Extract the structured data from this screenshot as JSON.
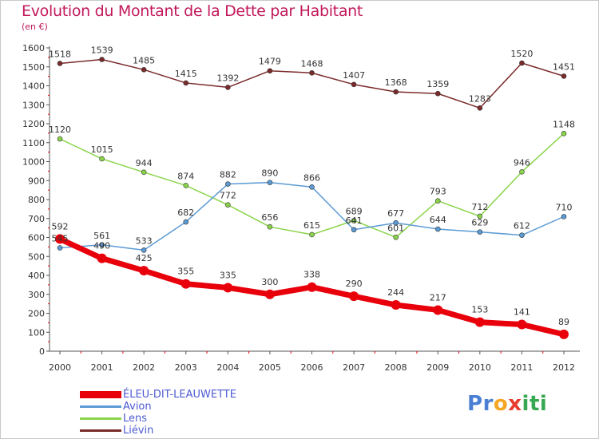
{
  "title": "Evolution du Montant de la Dette par Habitant",
  "subtitle": "(en €)",
  "logo": {
    "letters": [
      "P",
      "r",
      "o",
      "x",
      "i",
      "t",
      "i"
    ],
    "colors": [
      "#4a7fd4",
      "#4a7fd4",
      "#f5a623",
      "#e63c2f",
      "#39a852",
      "#39a852",
      "#39a852"
    ]
  },
  "chart_data": {
    "type": "line",
    "title": "Evolution du Montant de la Dette par Habitant",
    "ylabel": "(en €)",
    "xlabel": "",
    "x": [
      "2000",
      "2001",
      "2002",
      "2003",
      "2004",
      "2005",
      "2006",
      "2007",
      "2008",
      "2009",
      "2010",
      "2011",
      "2012"
    ],
    "ylim": [
      0,
      1600
    ],
    "yticks": [
      0,
      100,
      200,
      300,
      400,
      500,
      600,
      700,
      800,
      900,
      1000,
      1100,
      1200,
      1300,
      1400,
      1500,
      1600
    ],
    "grid": false,
    "legend_position": "bottom-left",
    "series": [
      {
        "name": "ÉLEU-DIT-LEAUWETTE",
        "color": "#e8000b",
        "text_color": "#4d5bd1",
        "values": [
          592,
          490,
          425,
          355,
          335,
          300,
          338,
          290,
          244,
          217,
          153,
          141,
          89
        ]
      },
      {
        "name": "Avion",
        "color": "#5b9bd5",
        "text_color": "#4d5bd1",
        "values": [
          545,
          561,
          533,
          682,
          882,
          890,
          866,
          641,
          677,
          644,
          629,
          612,
          710
        ]
      },
      {
        "name": "Lens",
        "color": "#8ad44a",
        "text_color": "#4d5bd1",
        "values": [
          1120,
          1015,
          944,
          874,
          772,
          656,
          615,
          689,
          601,
          793,
          712,
          946,
          1148
        ]
      },
      {
        "name": "Liévin",
        "color": "#7b2a2a",
        "text_color": "#4d5bd1",
        "values": [
          1518,
          1539,
          1485,
          1415,
          1392,
          1479,
          1468,
          1407,
          1368,
          1359,
          1283,
          1520,
          1451
        ]
      }
    ]
  }
}
